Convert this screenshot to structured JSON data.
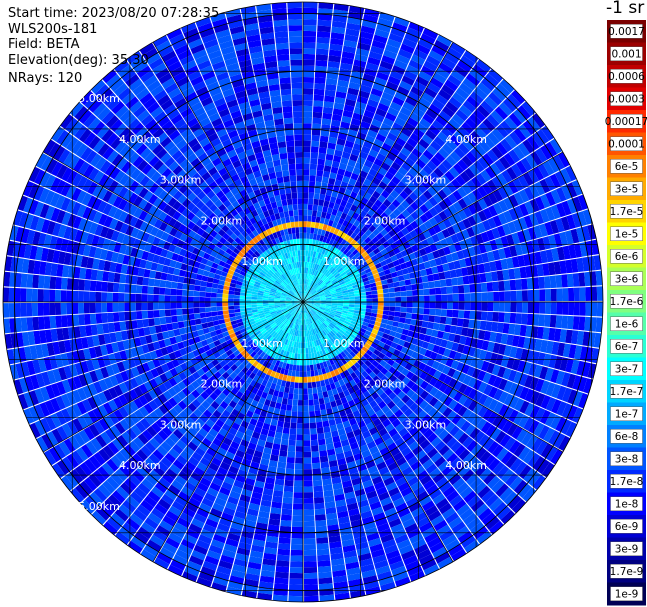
{
  "header": {
    "start_time": "Start time: 2023/08/20 07:28:35",
    "instrument": "WLS200s-181",
    "field": "Field: BETA",
    "elevation": "Elevation(deg): 35.30",
    "nrays": "NRays: 120"
  },
  "colorbar": {
    "unit_label": "-1 sr",
    "labels": [
      "0.0017",
      "0.001",
      "0.0006",
      "0.0003",
      "0.00017",
      "0.0001",
      "6e-5",
      "3e-5",
      "1.7e-5",
      "1e-5",
      "6e-6",
      "3e-6",
      "1.7e-6",
      "1e-6",
      "6e-7",
      "3e-7",
      "1.7e-7",
      "1e-7",
      "6e-8",
      "3e-8",
      "1.7e-8",
      "1e-8",
      "6e-9",
      "3e-9",
      "1.7e-9",
      "1e-9"
    ],
    "colors": [
      "#7a0000",
      "#9c0000",
      "#c00000",
      "#e00000",
      "#ff2a00",
      "#ff5500",
      "#ff8000",
      "#ffaa00",
      "#ffd400",
      "#ffff00",
      "#d4ff2a",
      "#aaff55",
      "#80ff80",
      "#55ffaa",
      "#2affd4",
      "#00ffff",
      "#00d4ff",
      "#00aaff",
      "#0080ff",
      "#0055ff",
      "#002aff",
      "#0000ff",
      "#0000d4",
      "#0000aa",
      "#000080",
      "#000055"
    ]
  },
  "chart_data": {
    "type": "heatmap",
    "projection": "polar PPI",
    "field": "BETA",
    "unit": "sr-1",
    "n_rays": 120,
    "range_rings_km": [
      1,
      2,
      3,
      4,
      5
    ],
    "ring_labels": [
      "1.00km",
      "2.00km",
      "3.00km",
      "4.00km",
      "5.00km"
    ],
    "max_range_km": 5.2,
    "background_level": "1e-8",
    "features": [
      {
        "range_km": [
          0.0,
          1.1
        ],
        "level": "1.7e-7"
      },
      {
        "range_km": [
          1.35,
          1.55
        ],
        "level": "3e-5"
      },
      {
        "range_km": [
          1.45,
          1.55
        ],
        "level": "1e-4"
      }
    ]
  }
}
